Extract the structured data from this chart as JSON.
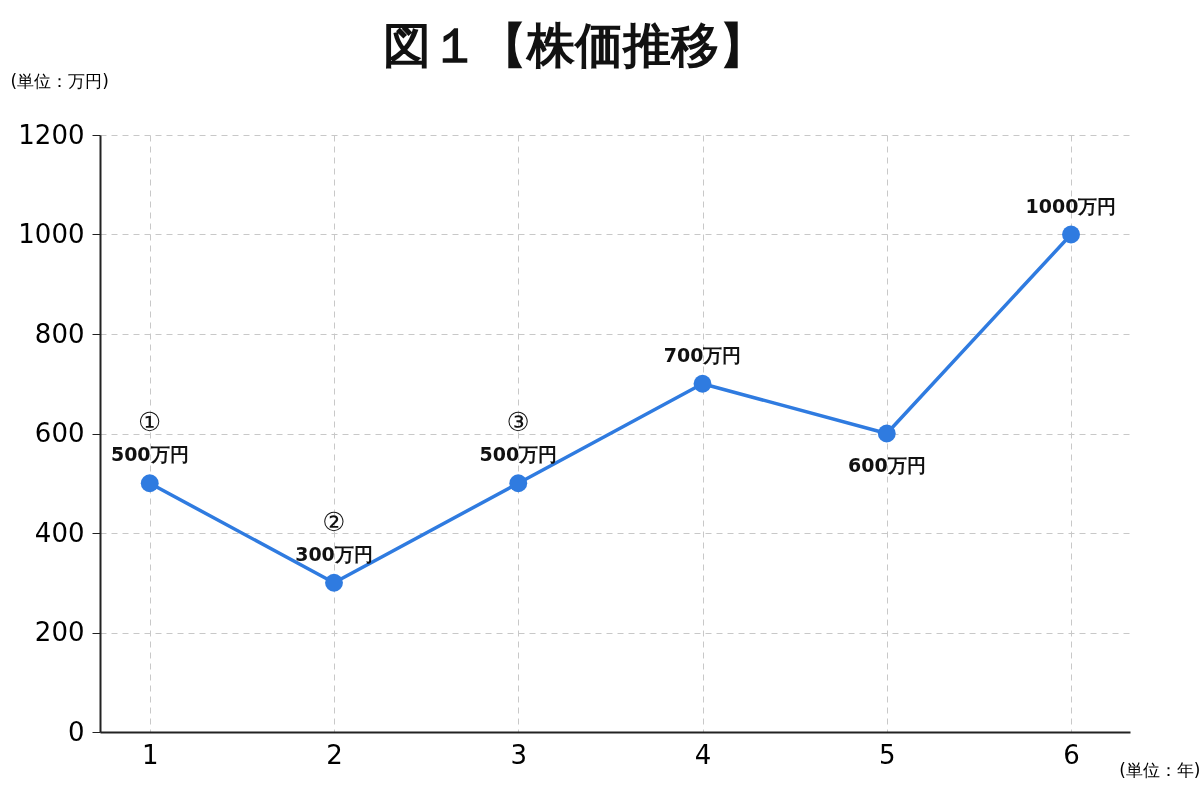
{
  "chart_data": {
    "type": "line",
    "title": "図１【株価推移】",
    "ylabel": "(単位：万円)",
    "xlabel": "(単位：年)",
    "x": [
      1,
      2,
      3,
      4,
      5,
      6
    ],
    "series": [
      {
        "color": "#2f7be0",
        "values": [
          500,
          300,
          500,
          700,
          600,
          1000
        ],
        "value_labels": [
          "500万円",
          "300万円",
          "500万円",
          "700万円",
          "600万円",
          "1000万円"
        ]
      }
    ],
    "annotations": [
      {
        "text": "①",
        "x": 1,
        "y": 500
      },
      {
        "text": "②",
        "x": 2,
        "y": 300
      },
      {
        "text": "③",
        "x": 3,
        "y": 500
      }
    ],
    "xlim": [
      0.73,
      6.32
    ],
    "xticks": [
      1,
      2,
      3,
      4,
      5,
      6
    ],
    "ylim": [
      0,
      1200
    ],
    "yticks": [
      0,
      200,
      400,
      600,
      800,
      1000,
      1200
    ],
    "grid": true,
    "marker": "circle",
    "line_style": "solid"
  }
}
